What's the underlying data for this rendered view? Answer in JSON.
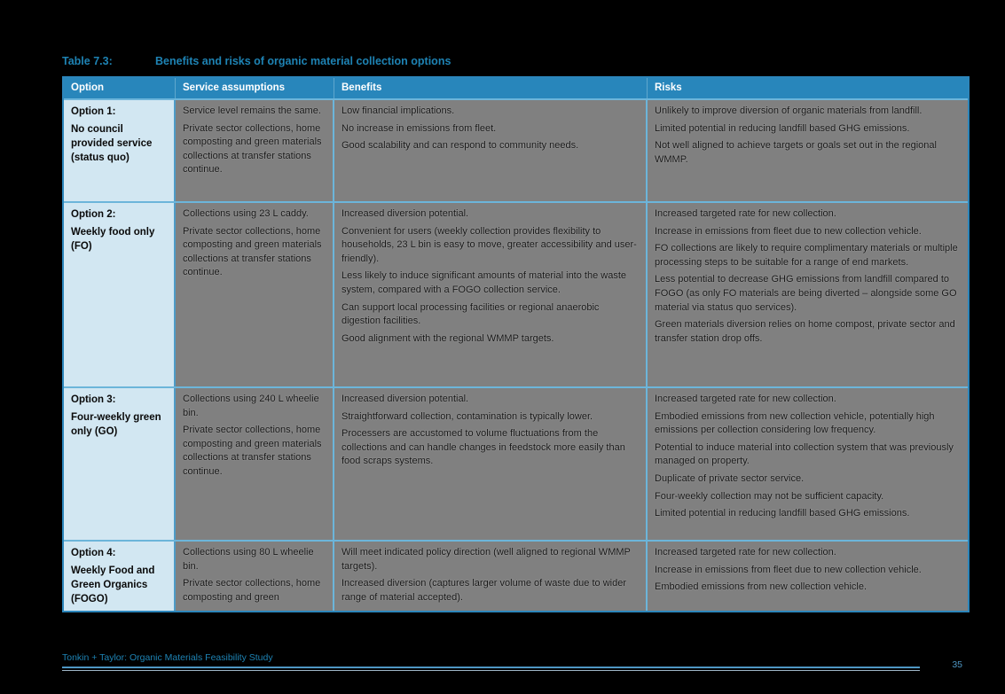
{
  "title": {
    "label": "Table 7.3:",
    "text": "Benefits and risks of organic material collection options"
  },
  "table": {
    "headers": [
      "Option",
      "Service assumptions",
      "Benefits",
      "Risks"
    ],
    "rows": [
      {
        "option_title": "Option 1:",
        "option_subtitle": "No council provided service (status quo)",
        "service_assumptions": [
          "Service level remains the same.",
          "Private sector collections, home composting and green materials collections at transfer stations continue."
        ],
        "benefits": [
          "Low financial implications.",
          "No increase in emissions from fleet.",
          "Good scalability and can respond to community needs."
        ],
        "risks": [
          "Unlikely to improve diversion of organic materials from landfill.",
          "Limited potential in reducing landfill based GHG emissions.",
          "Not well aligned to achieve targets or goals set out in the regional WMMP."
        ]
      },
      {
        "option_title": "Option 2:",
        "option_subtitle": "Weekly food only (FO)",
        "service_assumptions": [
          "Collections using 23 L caddy.",
          "Private sector collections, home composting and green materials collections at transfer stations continue."
        ],
        "benefits": [
          "Increased diversion potential.",
          "Convenient for users (weekly collection provides flexibility to households, 23 L bin is easy to move, greater accessibility and user-friendly).",
          "Less likely to induce significant amounts of material into the waste system, compared with a FOGO collection service.",
          "Can support local processing facilities or regional anaerobic digestion facilities.",
          "Good alignment with the regional WMMP targets."
        ],
        "risks": [
          "Increased targeted rate for new collection.",
          "Increase in emissions from fleet due to new collection vehicle.",
          "FO collections are likely to require complimentary materials or multiple processing steps to be suitable for a range of end markets.",
          "Less potential to decrease GHG emissions from landfill compared to FOGO (as only FO materials are being diverted – alongside some GO material via status quo services).",
          "Green materials diversion relies on home compost, private sector and transfer station drop offs."
        ]
      },
      {
        "option_title": "Option 3:",
        "option_subtitle": "Four-weekly green only (GO)",
        "service_assumptions": [
          "Collections using 240 L wheelie bin.",
          "Private sector collections, home composting and green materials collections at transfer stations continue."
        ],
        "benefits": [
          "Increased diversion potential.",
          "Straightforward collection, contamination is typically lower.",
          "Processers are accustomed to volume fluctuations from the collections and can handle changes in feedstock more easily than food scraps systems."
        ],
        "risks": [
          "Increased targeted rate for new collection.",
          "Embodied emissions from new collection vehicle, potentially high emissions per collection considering low frequency.",
          "Potential to induce material into collection system that was previously managed on property.",
          "Duplicate of private sector service.",
          "Four-weekly collection may not be sufficient capacity.",
          "Limited potential in reducing landfill based GHG emissions."
        ]
      },
      {
        "option_title": "Option 4:",
        "option_subtitle": "Weekly Food and Green Organics (FOGO)",
        "service_assumptions": [
          "Collections using 80 L wheelie bin.",
          "Private sector collections, home composting and green"
        ],
        "benefits": [
          "Will meet indicated policy direction (well aligned to regional WMMP targets).",
          "Increased diversion (captures larger volume of waste due to wider range of material accepted)."
        ],
        "risks": [
          "Increased targeted rate for new collection.",
          "Increase in emissions from fleet due to new collection vehicle.",
          "Embodied emissions from new collection vehicle."
        ]
      }
    ]
  },
  "footer": {
    "text": "Tonkin + Taylor: Organic Materials Feasibility Study",
    "page_number": "35"
  },
  "colors": {
    "page_background": "#000000",
    "header_bg": "#2886BB",
    "option_cell_bg": "#D2E7F2",
    "body_cell_bg": "#808080",
    "grid_line": "#6CB5DA",
    "accent_blue": "#1E83B4"
  }
}
